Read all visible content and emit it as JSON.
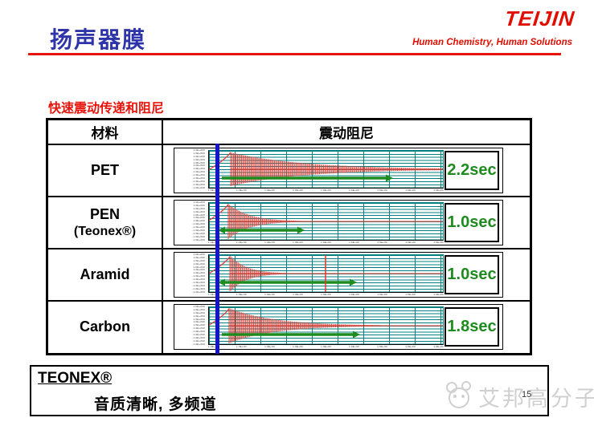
{
  "slide": {
    "title": "扬声器膜",
    "logo_text": "TEIJIN",
    "logo_tagline": "Human Chemistry, Human Solutions",
    "subtitle": "快速震动传递和阻尼",
    "page_number": "15",
    "watermark_text": "艾邦高分子"
  },
  "table": {
    "header": {
      "material": "材料",
      "damping": "震动阻尼"
    },
    "rows": [
      {
        "material": "PET",
        "material_sub": "",
        "time": "2.2sec",
        "waveform": {
          "peak": 27,
          "amp": 21,
          "tau": 90,
          "arrow_end": 223,
          "arrow_double": false,
          "red_vline": 0
        }
      },
      {
        "material": "PEN",
        "material_sub": "(Teonex®)",
        "time": "1.0sec",
        "waveform": {
          "peak": 24,
          "amp": 22,
          "tau": 26,
          "arrow_end": 113,
          "arrow_double": true,
          "red_vline": 0
        }
      },
      {
        "material": "Aramid",
        "material_sub": "",
        "time": "1.0sec",
        "waveform": {
          "peak": 26,
          "amp": 23,
          "tau": 20,
          "arrow_end": 178,
          "arrow_double": true,
          "red_vline": 145
        }
      },
      {
        "material": "Carbon",
        "material_sub": "",
        "time": "1.8sec",
        "waveform": {
          "peak": 25,
          "amp": 22,
          "tau": 55,
          "arrow_end": 182,
          "arrow_double": false,
          "red_vline": 0
        }
      }
    ],
    "axis_decor": {
      "y_tick_placeholder": "1.0E+000",
      "y_tick_placeholder_neg": "-1.0E+000",
      "x_tick_placeholder": "1.0E+00",
      "y_tick_count": 13,
      "x_tick_count": 9
    }
  },
  "footer": {
    "brand": "TEONEX®",
    "text": "音质清晰, 多频道"
  },
  "chart_data": {
    "type": "table",
    "title": "震动阻尼",
    "categories": [
      "PET",
      "PEN (Teonex®)",
      "Aramid",
      "Carbon"
    ],
    "values_sec": [
      2.2,
      1.0,
      1.0,
      1.8
    ],
    "unit": "sec",
    "description": "每种材料的震动衰减波形（红色衰减振荡曲线、绿色持续时间箭头、蓝色起始标线）"
  },
  "colors": {
    "title_blue": "#2e35a8",
    "brand_red": "#e00d00",
    "accent_red": "#e8140c",
    "grid_teal": "#007f7f",
    "wave_red": "#e4372e",
    "arrow_green": "#1e8b1e",
    "time_green": "#1e8b1e",
    "marker_blue": "#1414cc",
    "watermark_gray": "#d0d0d0"
  }
}
